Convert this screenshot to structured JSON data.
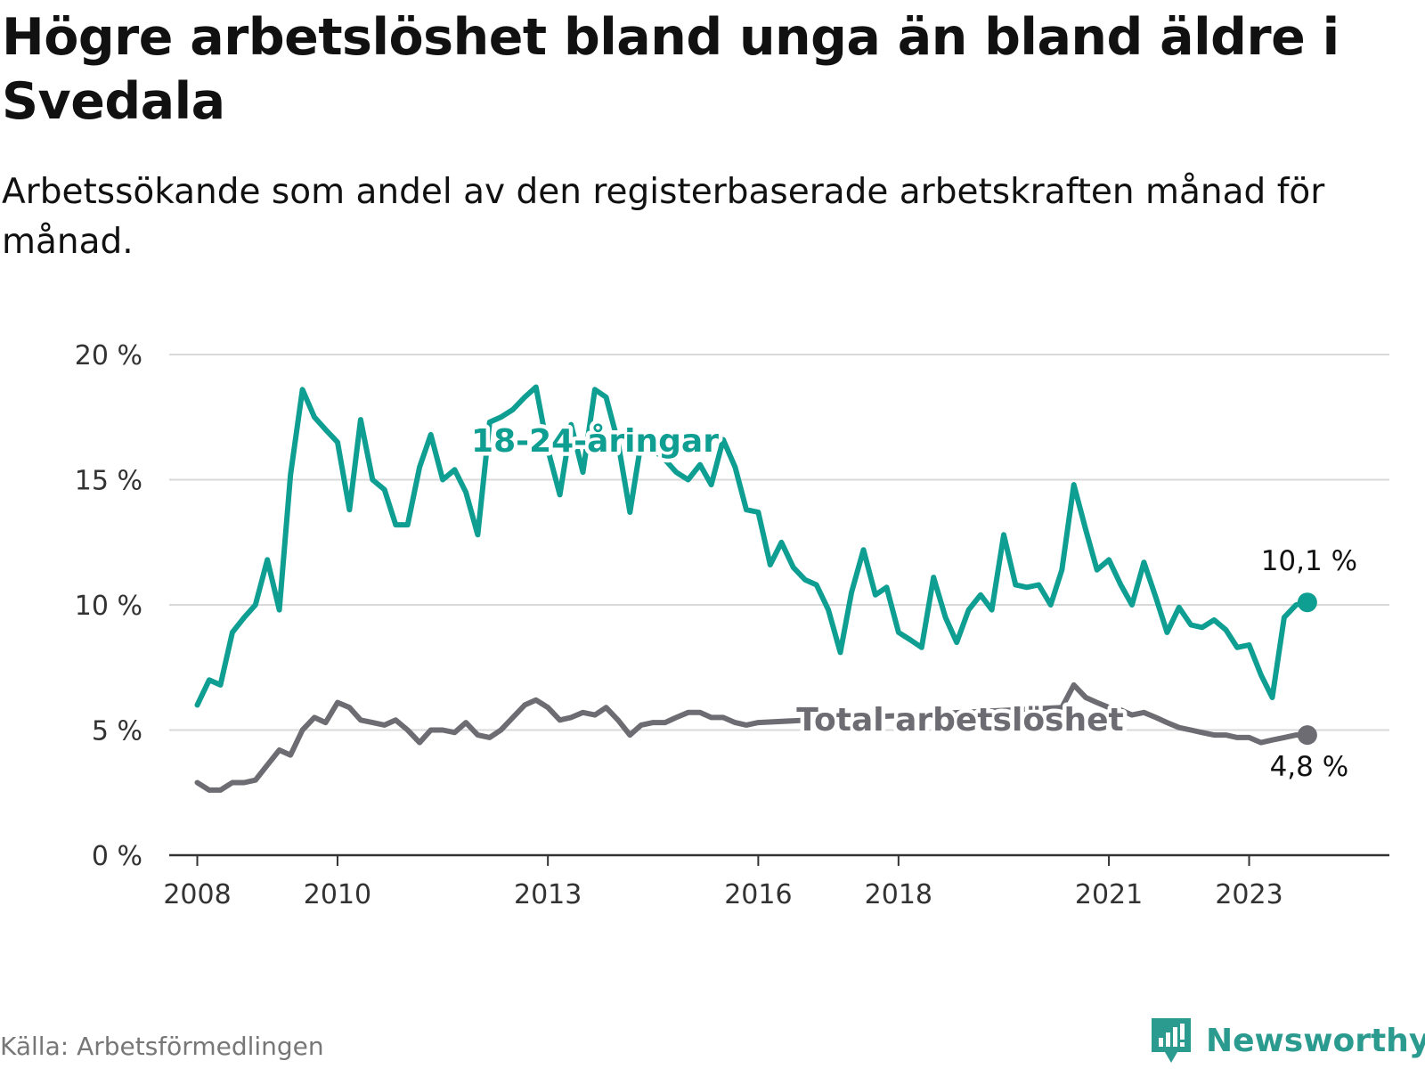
{
  "header": {
    "title": "Högre arbetslöshet bland unga än bland äldre i Svedala",
    "subtitle": "Arbetssökande som andel av den registerbaserade arbetskraften månad för månad."
  },
  "footer": {
    "source": "Källa: Arbetsförmedlingen",
    "brand": "Newsworthy"
  },
  "colors": {
    "youth": "#0f9e92",
    "total": "#6d6c72",
    "grid": "#d9d9d9",
    "axis": "#333333",
    "brand": "#2b9a8f"
  },
  "chart_data": {
    "type": "line",
    "title": "Högre arbetslöshet bland unga än bland äldre i Svedala",
    "xlabel": "",
    "ylabel": "",
    "xlim": [
      2007.6,
      2025.0
    ],
    "ylim": [
      0,
      20
    ],
    "grid": true,
    "y_ticks": [
      {
        "value": 0,
        "label": "0 %"
      },
      {
        "value": 5,
        "label": "5 %"
      },
      {
        "value": 10,
        "label": "10 %"
      },
      {
        "value": 15,
        "label": "15 %"
      },
      {
        "value": 20,
        "label": "20 %"
      }
    ],
    "x_ticks": [
      {
        "value": 2008,
        "label": "2008"
      },
      {
        "value": 2010,
        "label": "2010"
      },
      {
        "value": 2013,
        "label": "2013"
      },
      {
        "value": 2016,
        "label": "2016"
      },
      {
        "value": 2018,
        "label": "2018"
      },
      {
        "value": 2021,
        "label": "2021"
      },
      {
        "value": 2023,
        "label": "2023"
      }
    ],
    "series": [
      {
        "name": "18-24-åringar",
        "label": "18-24-åringar",
        "color": "#0f9e92",
        "end_label": "10,1 %",
        "points": [
          [
            2008.0,
            6.0
          ],
          [
            2008.17,
            7.0
          ],
          [
            2008.33,
            6.8
          ],
          [
            2008.5,
            8.9
          ],
          [
            2008.67,
            9.5
          ],
          [
            2008.83,
            10.0
          ],
          [
            2009.0,
            11.8
          ],
          [
            2009.17,
            9.8
          ],
          [
            2009.33,
            15.2
          ],
          [
            2009.5,
            18.6
          ],
          [
            2009.67,
            17.5
          ],
          [
            2009.83,
            17.0
          ],
          [
            2010.0,
            16.5
          ],
          [
            2010.17,
            13.8
          ],
          [
            2010.33,
            17.4
          ],
          [
            2010.5,
            15.0
          ],
          [
            2010.67,
            14.6
          ],
          [
            2010.83,
            13.2
          ],
          [
            2011.0,
            13.2
          ],
          [
            2011.17,
            15.5
          ],
          [
            2011.33,
            16.8
          ],
          [
            2011.5,
            15.0
          ],
          [
            2011.67,
            15.4
          ],
          [
            2011.83,
            14.5
          ],
          [
            2012.0,
            12.8
          ],
          [
            2012.17,
            17.3
          ],
          [
            2012.33,
            17.5
          ],
          [
            2012.5,
            17.8
          ],
          [
            2012.67,
            18.3
          ],
          [
            2012.83,
            18.7
          ],
          [
            2013.0,
            16.2
          ],
          [
            2013.17,
            14.4
          ],
          [
            2013.33,
            17.2
          ],
          [
            2013.5,
            15.3
          ],
          [
            2013.67,
            18.6
          ],
          [
            2013.83,
            18.3
          ],
          [
            2014.0,
            16.5
          ],
          [
            2014.17,
            13.7
          ],
          [
            2014.33,
            16.5
          ],
          [
            2014.5,
            16.2
          ],
          [
            2014.67,
            15.8
          ],
          [
            2014.83,
            15.3
          ],
          [
            2015.0,
            15.0
          ],
          [
            2015.17,
            15.6
          ],
          [
            2015.33,
            14.8
          ],
          [
            2015.5,
            16.6
          ],
          [
            2015.67,
            15.5
          ],
          [
            2015.83,
            13.8
          ],
          [
            2016.0,
            13.7
          ],
          [
            2016.17,
            11.6
          ],
          [
            2016.33,
            12.5
          ],
          [
            2016.5,
            11.5
          ],
          [
            2016.67,
            11.0
          ],
          [
            2016.83,
            10.8
          ],
          [
            2017.0,
            9.8
          ],
          [
            2017.17,
            8.1
          ],
          [
            2017.33,
            10.5
          ],
          [
            2017.5,
            12.2
          ],
          [
            2017.67,
            10.4
          ],
          [
            2017.83,
            10.7
          ],
          [
            2018.0,
            8.9
          ],
          [
            2018.17,
            8.6
          ],
          [
            2018.33,
            8.3
          ],
          [
            2018.5,
            11.1
          ],
          [
            2018.67,
            9.5
          ],
          [
            2018.83,
            8.5
          ],
          [
            2019.0,
            9.8
          ],
          [
            2019.17,
            10.4
          ],
          [
            2019.33,
            9.8
          ],
          [
            2019.5,
            12.8
          ],
          [
            2019.67,
            10.8
          ],
          [
            2019.83,
            10.7
          ],
          [
            2020.0,
            10.8
          ],
          [
            2020.17,
            10.0
          ],
          [
            2020.33,
            11.4
          ],
          [
            2020.5,
            14.8
          ],
          [
            2020.67,
            13.0
          ],
          [
            2020.83,
            11.4
          ],
          [
            2021.0,
            11.8
          ],
          [
            2021.17,
            10.8
          ],
          [
            2021.33,
            10.0
          ],
          [
            2021.5,
            11.7
          ],
          [
            2021.67,
            10.3
          ],
          [
            2021.83,
            8.9
          ],
          [
            2022.0,
            9.9
          ],
          [
            2022.17,
            9.2
          ],
          [
            2022.33,
            9.1
          ],
          [
            2022.5,
            9.4
          ],
          [
            2022.67,
            9.0
          ],
          [
            2022.83,
            8.3
          ],
          [
            2023.0,
            8.4
          ],
          [
            2023.17,
            7.2
          ],
          [
            2023.33,
            6.3
          ],
          [
            2023.5,
            9.5
          ],
          [
            2023.67,
            10.0
          ],
          [
            2023.83,
            10.1
          ]
        ]
      },
      {
        "name": "Total arbetslöshet",
        "label": "Total arbetslöshet",
        "color": "#6d6c72",
        "end_label": "4,8 %",
        "points": [
          [
            2008.0,
            2.9
          ],
          [
            2008.17,
            2.6
          ],
          [
            2008.33,
            2.6
          ],
          [
            2008.5,
            2.9
          ],
          [
            2008.67,
            2.9
          ],
          [
            2008.83,
            3.0
          ],
          [
            2009.0,
            3.6
          ],
          [
            2009.17,
            4.2
          ],
          [
            2009.33,
            4.0
          ],
          [
            2009.5,
            5.0
          ],
          [
            2009.67,
            5.5
          ],
          [
            2009.83,
            5.3
          ],
          [
            2010.0,
            6.1
          ],
          [
            2010.17,
            5.9
          ],
          [
            2010.33,
            5.4
          ],
          [
            2010.5,
            5.3
          ],
          [
            2010.67,
            5.2
          ],
          [
            2010.83,
            5.4
          ],
          [
            2011.0,
            5.0
          ],
          [
            2011.17,
            4.5
          ],
          [
            2011.33,
            5.0
          ],
          [
            2011.5,
            5.0
          ],
          [
            2011.67,
            4.9
          ],
          [
            2011.83,
            5.3
          ],
          [
            2012.0,
            4.8
          ],
          [
            2012.17,
            4.7
          ],
          [
            2012.33,
            5.0
          ],
          [
            2012.5,
            5.5
          ],
          [
            2012.67,
            6.0
          ],
          [
            2012.83,
            6.2
          ],
          [
            2013.0,
            5.9
          ],
          [
            2013.17,
            5.4
          ],
          [
            2013.33,
            5.5
          ],
          [
            2013.5,
            5.7
          ],
          [
            2013.67,
            5.6
          ],
          [
            2013.83,
            5.9
          ],
          [
            2014.0,
            5.4
          ],
          [
            2014.17,
            4.8
          ],
          [
            2014.33,
            5.2
          ],
          [
            2014.5,
            5.3
          ],
          [
            2014.67,
            5.3
          ],
          [
            2014.83,
            5.5
          ],
          [
            2015.0,
            5.7
          ],
          [
            2015.17,
            5.7
          ],
          [
            2015.33,
            5.5
          ],
          [
            2015.5,
            5.5
          ],
          [
            2015.67,
            5.3
          ],
          [
            2015.83,
            5.2
          ],
          [
            2016.0,
            5.3
          ],
          [
            2020.33,
            5.9
          ],
          [
            2020.5,
            6.8
          ],
          [
            2020.67,
            6.3
          ],
          [
            2020.83,
            6.1
          ],
          [
            2021.0,
            5.9
          ],
          [
            2021.17,
            5.8
          ],
          [
            2021.33,
            5.6
          ],
          [
            2021.5,
            5.7
          ],
          [
            2021.67,
            5.5
          ],
          [
            2021.83,
            5.3
          ],
          [
            2022.0,
            5.1
          ],
          [
            2022.17,
            5.0
          ],
          [
            2022.33,
            4.9
          ],
          [
            2022.5,
            4.8
          ],
          [
            2022.67,
            4.8
          ],
          [
            2022.83,
            4.7
          ],
          [
            2023.0,
            4.7
          ],
          [
            2023.17,
            4.5
          ],
          [
            2023.33,
            4.6
          ],
          [
            2023.5,
            4.7
          ],
          [
            2023.67,
            4.8
          ],
          [
            2023.83,
            4.8
          ]
        ]
      }
    ]
  }
}
